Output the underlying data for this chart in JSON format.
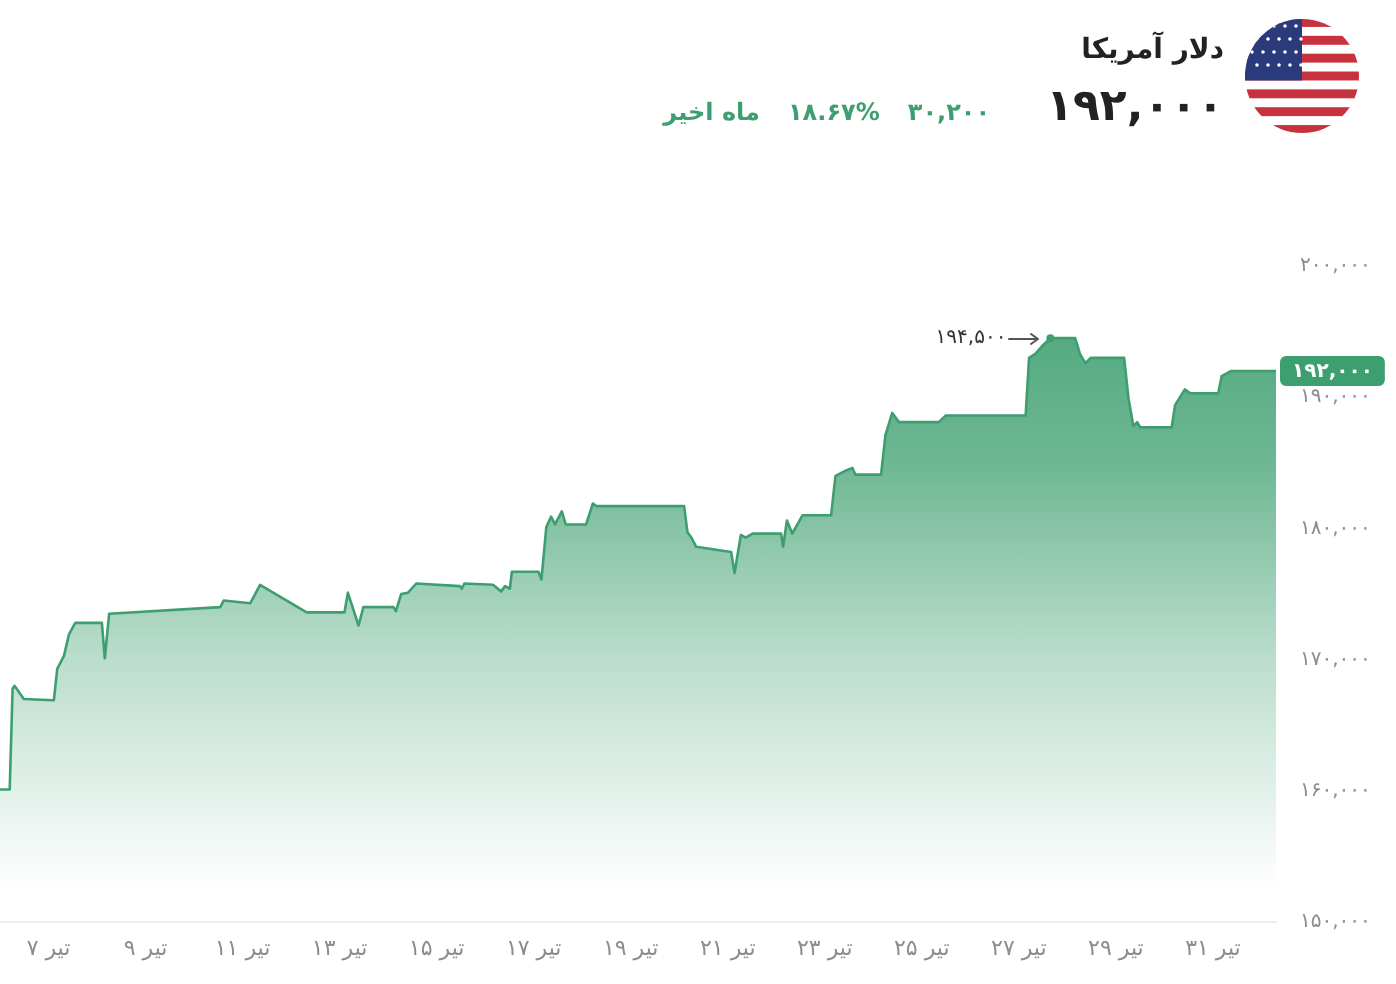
{
  "chart_data": {
    "type": "area",
    "title": "دلار آمریکا",
    "subtitle": "۱۹۲,۰۰۰",
    "x": [
      6,
      6.2,
      6.26,
      6.3,
      6.49,
      7.11,
      7.18,
      7.32,
      7.42,
      7.55,
      8.1,
      8.16,
      8.25,
      10.54,
      10.61,
      11.16,
      11.36,
      12.32,
      13.1,
      13.17,
      13.39,
      13.49,
      14.11,
      14.16,
      14.27,
      14.41,
      14.58,
      15.48,
      15.52,
      15.57,
      16.16,
      16.33,
      16.41,
      16.51,
      16.55,
      17.1,
      17.16,
      17.26,
      17.36,
      17.44,
      17.58,
      17.66,
      18.08,
      18.22,
      18.29,
      20.1,
      20.17,
      20.25,
      20.35,
      21.07,
      21.14,
      21.27,
      21.37,
      21.51,
      22.1,
      22.14,
      22.22,
      22.33,
      22.54,
      23.13,
      23.22,
      23.43,
      23.57,
      23.63,
      24.16,
      24.25,
      24.39,
      24.53,
      25.35,
      25.49,
      27.14,
      27.21,
      27.34,
      27.48,
      27.65,
      28.16,
      28.26,
      28.37,
      28.48,
      29.17,
      29.26,
      29.36,
      29.44,
      29.5,
      30.15,
      30.22,
      30.42,
      30.53,
      31.11,
      31.18,
      31.38,
      32.3
    ],
    "values": [
      160100,
      160100,
      167800,
      168000,
      167000,
      166900,
      169300,
      170300,
      171900,
      172800,
      172800,
      170100,
      173500,
      174000,
      174500,
      174300,
      175700,
      173600,
      173600,
      175100,
      172600,
      174000,
      174000,
      173700,
      175000,
      175100,
      175800,
      175600,
      175400,
      175800,
      175700,
      175200,
      175600,
      175400,
      176700,
      176700,
      176100,
      180100,
      180900,
      180300,
      181300,
      180300,
      180300,
      181900,
      181700,
      181700,
      179700,
      179300,
      178600,
      178200,
      176600,
      179500,
      179300,
      179600,
      179600,
      178600,
      180600,
      179600,
      181000,
      181000,
      184000,
      184400,
      184600,
      184100,
      184100,
      187100,
      188800,
      188100,
      188100,
      188600,
      188600,
      193000,
      193300,
      193900,
      194500,
      194500,
      193300,
      192600,
      193000,
      193000,
      189900,
      187800,
      188100,
      187700,
      187700,
      189400,
      190600,
      190300,
      190300,
      191600,
      192000,
      192000
    ],
    "color": "#3d9f70",
    "xlim": [
      6,
      32.3
    ],
    "xticks": [
      {
        "value": 7,
        "label": "۷ تیر"
      },
      {
        "value": 9,
        "label": "۹ تیر"
      },
      {
        "value": 11,
        "label": "۱۱ تیر"
      },
      {
        "value": 13,
        "label": "۱۳ تیر"
      },
      {
        "value": 15,
        "label": "۱۵ تیر"
      },
      {
        "value": 17,
        "label": "۱۷ تیر"
      },
      {
        "value": 19,
        "label": "۱۹ تیر"
      },
      {
        "value": 21,
        "label": "۲۱ تیر"
      },
      {
        "value": 23,
        "label": "۲۳ تیر"
      },
      {
        "value": 25,
        "label": "۲۵ تیر"
      },
      {
        "value": 27,
        "label": "۲۷ تیر"
      },
      {
        "value": 29,
        "label": "۲۹ تیر"
      },
      {
        "value": 31,
        "label": "۳۱ تیر"
      }
    ],
    "ylim": [
      150000,
      200000
    ],
    "yticks": [
      {
        "value": 150000,
        "label": "۱۵۰,۰۰۰"
      },
      {
        "value": 160000,
        "label": "۱۶۰,۰۰۰"
      },
      {
        "value": 170000,
        "label": "۱۷۰,۰۰۰"
      },
      {
        "value": 180000,
        "label": "۱۸۰,۰۰۰"
      },
      {
        "value": 190000,
        "label": "۱۹۰,۰۰۰"
      },
      {
        "value": 200000,
        "label": "۲۰۰,۰۰۰"
      }
    ],
    "annotations": [
      "۳۰,۲۰۰",
      "۱۸.۶۷%",
      "ماه اخیر",
      {
        "text": "۱۹۴,۵۰۰",
        "x": 27.65,
        "y": 194500
      },
      {
        "text": "۱۹۲,۰۰۰",
        "x": 32.3,
        "y": 192000
      }
    ]
  }
}
